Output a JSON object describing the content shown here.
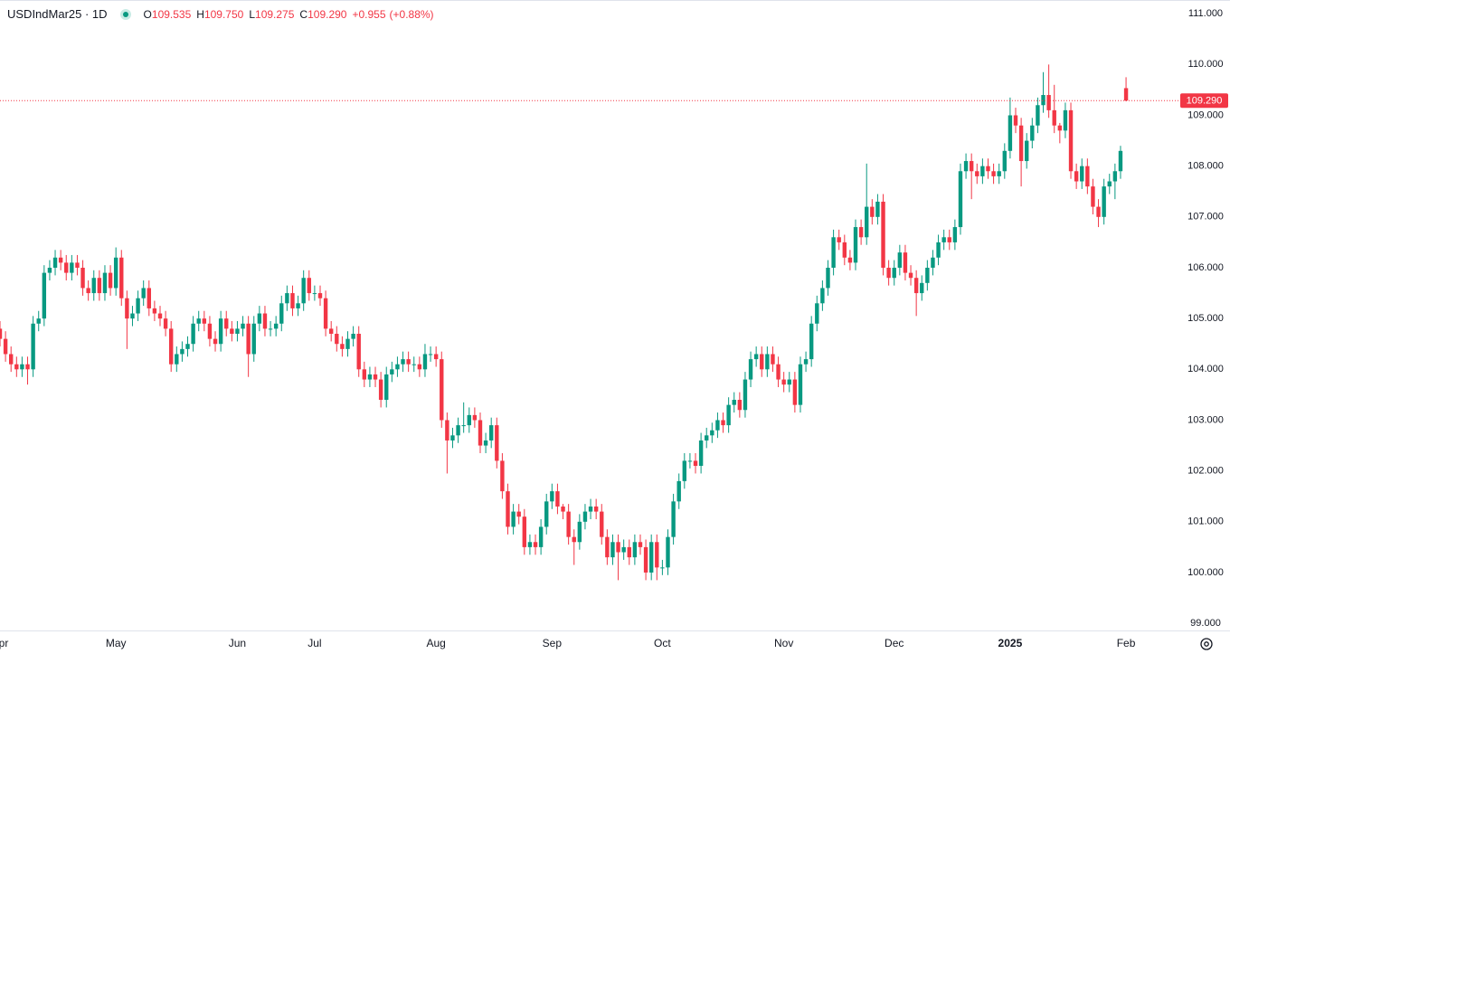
{
  "chart_data": {
    "type": "candlestick",
    "symbol": "USDIndMar25 · 1D",
    "ohlc_letters": [
      "O",
      "H",
      "L",
      "C"
    ],
    "ohlc_values": [
      "109.535",
      "109.750",
      "109.275",
      "109.290"
    ],
    "change": "+0.955",
    "change_percent": "(+0.88%)",
    "last_price": {
      "value": 109.29,
      "label": "109.290"
    },
    "colors": {
      "up": "#089981",
      "down": "#f23645"
    },
    "xlim": [
      0,
      213
    ],
    "ylim": [
      98.86,
      111.27
    ],
    "xticks": [
      {
        "value": 0,
        "label": "Apr"
      },
      {
        "value": 21,
        "label": "May"
      },
      {
        "value": 43,
        "label": "Jun"
      },
      {
        "value": 57,
        "label": "Jul"
      },
      {
        "value": 79,
        "label": "Aug"
      },
      {
        "value": 100,
        "label": "Sep"
      },
      {
        "value": 120,
        "label": "Oct"
      },
      {
        "value": 142,
        "label": "Nov"
      },
      {
        "value": 162,
        "label": "Dec"
      },
      {
        "value": 183,
        "label": "2025"
      },
      {
        "value": 204,
        "label": "Feb"
      }
    ],
    "yticks": [
      {
        "value": 99,
        "label": "99.000"
      },
      {
        "value": 100,
        "label": "100.000"
      },
      {
        "value": 101,
        "label": "101.000"
      },
      {
        "value": 102,
        "label": "102.000"
      },
      {
        "value": 103,
        "label": "103.000"
      },
      {
        "value": 104,
        "label": "104.000"
      },
      {
        "value": 105,
        "label": "105.000"
      },
      {
        "value": 106,
        "label": "106.000"
      },
      {
        "value": 107,
        "label": "107.000"
      },
      {
        "value": 108,
        "label": "108.000"
      },
      {
        "value": 109,
        "label": "109.000"
      },
      {
        "value": 110,
        "label": "110.000"
      },
      {
        "value": 111,
        "label": "111.000"
      }
    ],
    "candles": [
      [
        104.8,
        104.95,
        104.45,
        104.6
      ],
      [
        104.6,
        104.75,
        104.15,
        104.3
      ],
      [
        104.3,
        104.45,
        103.95,
        104.1
      ],
      [
        104.1,
        104.25,
        103.85,
        104.0
      ],
      [
        104.0,
        104.25,
        103.85,
        104.1
      ],
      [
        104.1,
        104.25,
        103.7,
        104.0
      ],
      [
        104.0,
        105.05,
        103.85,
        104.9
      ],
      [
        104.9,
        105.15,
        104.75,
        105.0
      ],
      [
        105.0,
        106.05,
        104.85,
        105.9
      ],
      [
        105.9,
        106.15,
        105.75,
        106.0
      ],
      [
        106.0,
        106.35,
        105.85,
        106.2
      ],
      [
        106.2,
        106.35,
        105.95,
        106.1
      ],
      [
        106.1,
        106.25,
        105.75,
        105.9
      ],
      [
        105.9,
        106.25,
        105.75,
        106.1
      ],
      [
        106.1,
        106.25,
        105.85,
        106.0
      ],
      [
        106.0,
        106.15,
        105.45,
        105.6
      ],
      [
        105.6,
        105.75,
        105.35,
        105.5
      ],
      [
        105.5,
        105.95,
        105.35,
        105.8
      ],
      [
        105.8,
        105.95,
        105.35,
        105.5
      ],
      [
        105.5,
        106.05,
        105.35,
        105.9
      ],
      [
        105.9,
        106.05,
        105.45,
        105.6
      ],
      [
        105.6,
        106.4,
        105.45,
        106.2
      ],
      [
        106.2,
        106.35,
        105.25,
        105.4
      ],
      [
        105.4,
        105.55,
        104.4,
        105.0
      ],
      [
        105.0,
        105.25,
        104.85,
        105.1
      ],
      [
        105.1,
        105.55,
        104.95,
        105.4
      ],
      [
        105.4,
        105.75,
        105.25,
        105.6
      ],
      [
        105.6,
        105.75,
        105.05,
        105.2
      ],
      [
        105.2,
        105.35,
        104.95,
        105.1
      ],
      [
        105.1,
        105.25,
        104.85,
        105.0
      ],
      [
        105.0,
        105.15,
        104.65,
        104.8
      ],
      [
        104.8,
        104.95,
        103.95,
        104.1
      ],
      [
        104.1,
        104.45,
        103.95,
        104.3
      ],
      [
        104.3,
        104.55,
        104.15,
        104.4
      ],
      [
        104.4,
        104.65,
        104.25,
        104.5
      ],
      [
        104.5,
        105.05,
        104.35,
        104.9
      ],
      [
        104.9,
        105.15,
        104.75,
        105.0
      ],
      [
        105.0,
        105.15,
        104.75,
        104.9
      ],
      [
        104.9,
        105.05,
        104.45,
        104.6
      ],
      [
        104.6,
        104.75,
        104.35,
        104.5
      ],
      [
        104.5,
        105.15,
        104.35,
        105.0
      ],
      [
        105.0,
        105.15,
        104.65,
        104.8
      ],
      [
        104.8,
        104.95,
        104.55,
        104.7
      ],
      [
        104.7,
        104.95,
        104.55,
        104.8
      ],
      [
        104.8,
        105.05,
        104.65,
        104.9
      ],
      [
        104.9,
        105.05,
        103.85,
        104.3
      ],
      [
        104.3,
        105.05,
        104.15,
        104.9
      ],
      [
        104.9,
        105.25,
        104.75,
        105.1
      ],
      [
        105.1,
        105.25,
        104.65,
        104.8
      ],
      [
        104.8,
        104.95,
        104.65,
        104.8
      ],
      [
        104.8,
        105.05,
        104.65,
        104.9
      ],
      [
        104.9,
        105.45,
        104.75,
        105.3
      ],
      [
        105.3,
        105.65,
        105.15,
        105.5
      ],
      [
        105.5,
        105.65,
        105.05,
        105.2
      ],
      [
        105.2,
        105.45,
        105.05,
        105.3
      ],
      [
        105.3,
        105.95,
        105.15,
        105.8
      ],
      [
        105.8,
        105.95,
        105.35,
        105.5
      ],
      [
        105.5,
        105.65,
        105.35,
        105.5
      ],
      [
        105.5,
        105.65,
        105.25,
        105.4
      ],
      [
        105.4,
        105.55,
        104.65,
        104.8
      ],
      [
        104.8,
        104.95,
        104.55,
        104.7
      ],
      [
        104.7,
        104.85,
        104.35,
        104.5
      ],
      [
        104.5,
        104.65,
        104.25,
        104.4
      ],
      [
        104.4,
        104.75,
        104.25,
        104.6
      ],
      [
        104.6,
        104.85,
        104.45,
        104.7
      ],
      [
        104.7,
        104.85,
        103.85,
        104.0
      ],
      [
        104.0,
        104.15,
        103.65,
        103.8
      ],
      [
        103.8,
        104.05,
        103.65,
        103.9
      ],
      [
        103.9,
        104.05,
        103.65,
        103.8
      ],
      [
        103.8,
        103.95,
        103.25,
        103.4
      ],
      [
        103.4,
        104.05,
        103.25,
        103.9
      ],
      [
        103.9,
        104.15,
        103.75,
        104.0
      ],
      [
        104.0,
        104.25,
        103.85,
        104.1
      ],
      [
        104.1,
        104.35,
        103.95,
        104.2
      ],
      [
        104.2,
        104.35,
        103.95,
        104.1
      ],
      [
        104.1,
        104.25,
        103.95,
        104.1
      ],
      [
        104.1,
        104.25,
        103.85,
        104.0
      ],
      [
        104.0,
        104.5,
        103.85,
        104.3
      ],
      [
        104.3,
        104.45,
        104.15,
        104.3
      ],
      [
        104.3,
        104.45,
        104.05,
        104.2
      ],
      [
        104.2,
        104.35,
        102.85,
        103.0
      ],
      [
        103.0,
        103.15,
        101.95,
        102.6
      ],
      [
        102.6,
        102.85,
        102.45,
        102.7
      ],
      [
        102.7,
        103.05,
        102.55,
        102.9
      ],
      [
        102.9,
        103.35,
        102.75,
        102.9
      ],
      [
        102.9,
        103.25,
        102.75,
        103.1
      ],
      [
        103.1,
        103.25,
        102.85,
        103.0
      ],
      [
        103.0,
        103.15,
        102.35,
        102.5
      ],
      [
        102.5,
        102.75,
        102.35,
        102.6
      ],
      [
        102.6,
        103.05,
        102.45,
        102.9
      ],
      [
        102.9,
        103.05,
        102.05,
        102.2
      ],
      [
        102.2,
        102.35,
        101.45,
        101.6
      ],
      [
        101.6,
        101.75,
        100.75,
        100.9
      ],
      [
        100.9,
        101.35,
        100.75,
        101.2
      ],
      [
        101.2,
        101.35,
        100.95,
        101.1
      ],
      [
        101.1,
        101.25,
        100.35,
        100.5
      ],
      [
        100.5,
        100.75,
        100.35,
        100.6
      ],
      [
        100.6,
        100.75,
        100.35,
        100.5
      ],
      [
        100.5,
        101.05,
        100.35,
        100.9
      ],
      [
        100.9,
        101.55,
        100.75,
        101.4
      ],
      [
        101.4,
        101.75,
        101.25,
        101.6
      ],
      [
        101.6,
        101.75,
        101.15,
        101.3
      ],
      [
        101.3,
        101.35,
        101.05,
        101.2
      ],
      [
        101.2,
        101.35,
        100.55,
        100.7
      ],
      [
        100.7,
        100.85,
        100.15,
        100.6
      ],
      [
        100.6,
        101.15,
        100.45,
        101.0
      ],
      [
        101.0,
        101.35,
        100.85,
        101.2
      ],
      [
        101.2,
        101.45,
        101.05,
        101.3
      ],
      [
        101.3,
        101.45,
        101.05,
        101.2
      ],
      [
        101.2,
        101.35,
        100.55,
        100.7
      ],
      [
        100.7,
        100.85,
        100.15,
        100.3
      ],
      [
        100.3,
        100.75,
        100.15,
        100.6
      ],
      [
        100.6,
        100.75,
        99.85,
        100.4
      ],
      [
        100.4,
        100.65,
        100.25,
        100.5
      ],
      [
        100.5,
        100.65,
        100.15,
        100.3
      ],
      [
        100.3,
        100.75,
        100.15,
        100.6
      ],
      [
        100.6,
        100.75,
        100.35,
        100.5
      ],
      [
        100.5,
        100.65,
        99.85,
        100.0
      ],
      [
        100.0,
        100.75,
        99.85,
        100.6
      ],
      [
        100.6,
        100.75,
        99.85,
        100.1
      ],
      [
        100.1,
        100.25,
        99.95,
        100.1
      ],
      [
        100.1,
        100.85,
        99.95,
        100.7
      ],
      [
        100.7,
        101.55,
        100.55,
        101.4
      ],
      [
        101.4,
        101.95,
        101.25,
        101.8
      ],
      [
        101.8,
        102.35,
        101.65,
        102.2
      ],
      [
        102.2,
        102.35,
        102.05,
        102.2
      ],
      [
        102.2,
        102.35,
        101.95,
        102.1
      ],
      [
        102.1,
        102.75,
        101.95,
        102.6
      ],
      [
        102.6,
        102.85,
        102.45,
        102.7
      ],
      [
        102.7,
        102.95,
        102.55,
        102.8
      ],
      [
        102.8,
        103.15,
        102.65,
        103.0
      ],
      [
        103.0,
        103.15,
        102.75,
        102.9
      ],
      [
        102.9,
        103.45,
        102.75,
        103.3
      ],
      [
        103.3,
        103.55,
        103.15,
        103.4
      ],
      [
        103.4,
        103.55,
        103.05,
        103.2
      ],
      [
        103.2,
        103.95,
        103.05,
        103.8
      ],
      [
        103.8,
        104.35,
        103.65,
        104.2
      ],
      [
        104.2,
        104.45,
        104.05,
        104.3
      ],
      [
        104.3,
        104.45,
        103.85,
        104.0
      ],
      [
        104.0,
        104.45,
        103.85,
        104.3
      ],
      [
        104.3,
        104.45,
        103.95,
        104.1
      ],
      [
        104.1,
        104.25,
        103.65,
        103.8
      ],
      [
        103.8,
        103.95,
        103.55,
        103.7
      ],
      [
        103.7,
        103.95,
        103.55,
        103.8
      ],
      [
        103.8,
        103.95,
        103.15,
        103.3
      ],
      [
        103.3,
        104.25,
        103.15,
        104.1
      ],
      [
        104.1,
        104.35,
        103.95,
        104.2
      ],
      [
        104.2,
        105.05,
        104.05,
        104.9
      ],
      [
        104.9,
        105.45,
        104.75,
        105.3
      ],
      [
        105.3,
        105.75,
        105.15,
        105.6
      ],
      [
        105.6,
        106.15,
        105.45,
        106.0
      ],
      [
        106.0,
        106.75,
        105.85,
        106.6
      ],
      [
        106.6,
        106.75,
        106.35,
        106.5
      ],
      [
        106.5,
        106.65,
        106.05,
        106.2
      ],
      [
        106.2,
        106.35,
        105.95,
        106.1
      ],
      [
        106.1,
        106.95,
        105.95,
        106.8
      ],
      [
        106.8,
        106.95,
        106.45,
        106.6
      ],
      [
        106.6,
        108.05,
        106.45,
        107.2
      ],
      [
        107.2,
        107.35,
        106.85,
        107.0
      ],
      [
        107.0,
        107.45,
        106.85,
        107.3
      ],
      [
        107.3,
        107.45,
        105.85,
        106.0
      ],
      [
        106.0,
        106.15,
        105.65,
        105.8
      ],
      [
        105.8,
        106.15,
        105.65,
        106.0
      ],
      [
        106.0,
        106.45,
        105.85,
        106.3
      ],
      [
        106.3,
        106.45,
        105.75,
        105.9
      ],
      [
        105.9,
        106.05,
        105.65,
        105.8
      ],
      [
        105.8,
        105.95,
        105.05,
        105.5
      ],
      [
        105.5,
        105.85,
        105.35,
        105.7
      ],
      [
        105.7,
        106.15,
        105.55,
        106.0
      ],
      [
        106.0,
        106.35,
        105.85,
        106.2
      ],
      [
        106.2,
        106.65,
        106.05,
        106.5
      ],
      [
        106.5,
        106.75,
        106.35,
        106.6
      ],
      [
        106.6,
        106.75,
        106.35,
        106.5
      ],
      [
        106.5,
        106.95,
        106.35,
        106.8
      ],
      [
        106.8,
        108.05,
        106.65,
        107.9
      ],
      [
        107.9,
        108.25,
        107.75,
        108.1
      ],
      [
        108.1,
        108.25,
        107.35,
        107.9
      ],
      [
        107.9,
        108.05,
        107.65,
        107.8
      ],
      [
        107.8,
        108.15,
        107.65,
        108.0
      ],
      [
        108.0,
        108.15,
        107.75,
        107.9
      ],
      [
        107.9,
        108.05,
        107.65,
        107.8
      ],
      [
        107.8,
        108.05,
        107.65,
        107.9
      ],
      [
        107.9,
        108.45,
        107.75,
        108.3
      ],
      [
        108.3,
        109.35,
        108.15,
        109.0
      ],
      [
        109.0,
        109.15,
        108.65,
        108.8
      ],
      [
        108.8,
        108.95,
        107.6,
        108.1
      ],
      [
        108.1,
        108.65,
        107.95,
        108.5
      ],
      [
        108.5,
        108.95,
        108.35,
        108.8
      ],
      [
        108.8,
        109.35,
        108.65,
        109.2
      ],
      [
        109.2,
        109.85,
        109.05,
        109.4
      ],
      [
        109.4,
        110.0,
        108.95,
        109.1
      ],
      [
        109.1,
        109.6,
        108.65,
        108.8
      ],
      [
        108.8,
        108.85,
        108.45,
        108.7
      ],
      [
        108.7,
        109.25,
        108.55,
        109.1
      ],
      [
        109.1,
        109.25,
        107.75,
        107.9
      ],
      [
        107.9,
        108.05,
        107.55,
        107.7
      ],
      [
        107.7,
        108.15,
        107.55,
        108.0
      ],
      [
        108.0,
        108.15,
        107.45,
        107.6
      ],
      [
        107.6,
        107.75,
        107.05,
        107.2
      ],
      [
        107.2,
        107.35,
        106.8,
        107.0
      ],
      [
        107.0,
        107.75,
        106.85,
        107.6
      ],
      [
        107.6,
        107.85,
        107.45,
        107.7
      ],
      [
        107.7,
        108.05,
        107.35,
        107.9
      ],
      [
        107.9,
        108.4,
        107.75,
        108.3
      ],
      [
        109.535,
        109.75,
        109.275,
        109.29
      ]
    ]
  }
}
